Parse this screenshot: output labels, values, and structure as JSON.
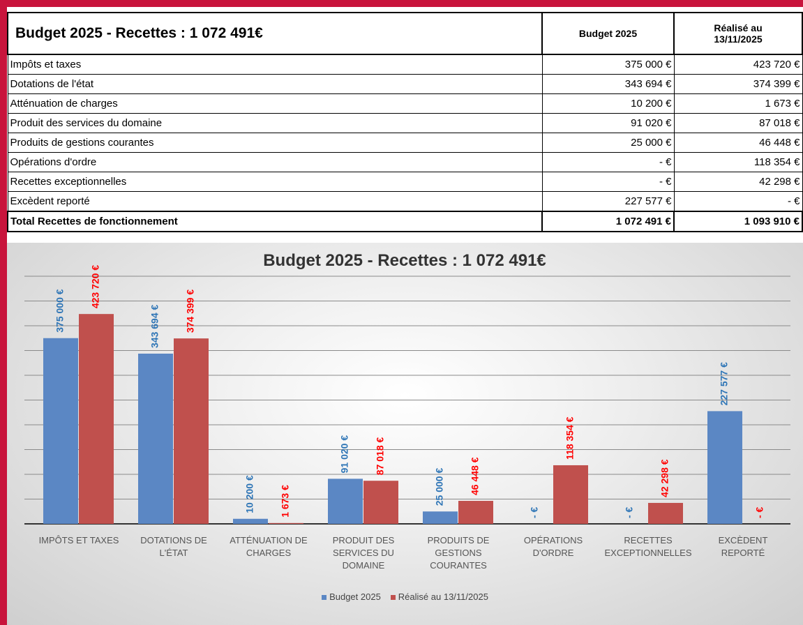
{
  "table": {
    "title": "Budget 2025 - Recettes : 1 072 491€",
    "columns": [
      "Budget 2025",
      "Réalisé au 13/11/2025"
    ],
    "rows": [
      [
        "Impôts et taxes",
        "375 000 €",
        "423 720 €"
      ],
      [
        "Dotations de l'état",
        "343 694 €",
        "374 399 €"
      ],
      [
        "Atténuation de charges",
        "10 200 €",
        "1 673 €"
      ],
      [
        "Produit des services du domaine",
        "91 020 €",
        "87 018 €"
      ],
      [
        "Produits de gestions courantes",
        "25 000 €",
        "46 448 €"
      ],
      [
        "Opérations d'ordre",
        "-   €",
        "118 354 €"
      ],
      [
        "Recettes exceptionnelles",
        "-   €",
        "42 298 €"
      ],
      [
        "Excèdent reporté",
        "227 577 €",
        "-   €"
      ]
    ],
    "total": [
      "Total Recettes de fonctionnement",
      "1 072 491 €",
      "1 093 910 €"
    ]
  },
  "chart_data": {
    "type": "bar",
    "title": "Budget 2025 - Recettes : 1 072 491€",
    "categories": [
      "IMPÔTS ET TAXES",
      "DOTATIONS DE L'ÉTAT",
      "ATTÉNUATION DE CHARGES",
      "PRODUIT DES SERVICES DU DOMAINE",
      "PRODUITS DE GESTIONS COURANTES",
      "OPÉRATIONS D'ORDRE",
      "RECETTES EXCEPTIONNELLES",
      "EXCÈDENT REPORTÉ"
    ],
    "series": [
      {
        "name": "Budget 2025",
        "color": "#5b87c4",
        "label_color": "#2e75b6",
        "values": [
          375000,
          343694,
          10200,
          91020,
          25000,
          0,
          0,
          227577
        ],
        "value_labels": [
          "375 000 €",
          "343 694 €",
          "10 200 €",
          "91 020 €",
          "25 000 €",
          "- €",
          "- €",
          "227 577 €"
        ]
      },
      {
        "name": "Réalisé au 13/11/2025",
        "color": "#c0504d",
        "label_color": "#ff0000",
        "values": [
          423720,
          374399,
          1673,
          87018,
          46448,
          118354,
          42298,
          0
        ],
        "value_labels": [
          "423 720 €",
          "374 399 €",
          "1 673 €",
          "87 018 €",
          "46 448 €",
          "118 354 €",
          "42 298 €",
          "- €"
        ]
      }
    ],
    "ylim": [
      0,
      500000
    ],
    "yticks": [
      0,
      50000,
      100000,
      150000,
      200000,
      250000,
      300000,
      350000,
      400000,
      450000,
      500000
    ],
    "grid": true,
    "legend": "bottom"
  }
}
